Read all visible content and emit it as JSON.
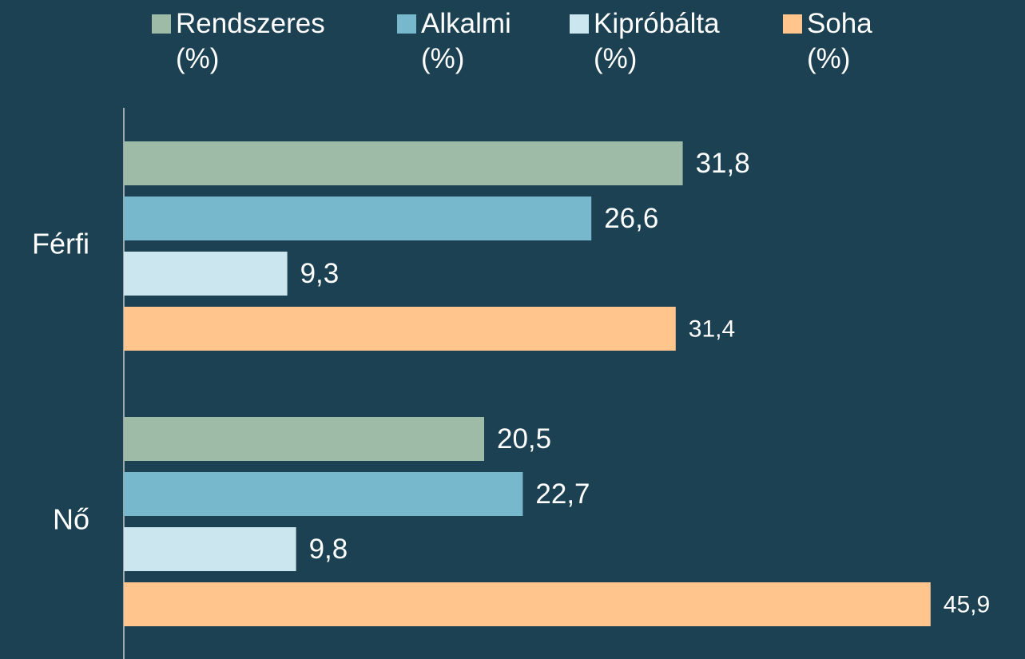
{
  "chart_data": {
    "type": "hbar",
    "categories": [
      "Férfi",
      "Nő"
    ],
    "series": [
      {
        "name": "Rendszeres (%)",
        "color": "#9dbba6",
        "values": [
          31.8,
          20.5
        ],
        "value_labels": [
          "31,8",
          "20,5"
        ]
      },
      {
        "name": "Alkalmi (%)",
        "color": "#78b8cc",
        "values": [
          26.6,
          22.7
        ],
        "value_labels": [
          "26,6",
          "22,7"
        ]
      },
      {
        "name": "Kipróbálta (%)",
        "color": "#cce6ef",
        "values": [
          9.3,
          9.8
        ],
        "value_labels": [
          "9,3",
          "9,8"
        ]
      },
      {
        "name": "Soha (%)",
        "color": "#ffc58d",
        "values": [
          31.4,
          45.9
        ],
        "value_labels": [
          "31,4",
          "45,9"
        ]
      }
    ],
    "xlim": [
      0,
      46
    ],
    "legend": "top"
  }
}
